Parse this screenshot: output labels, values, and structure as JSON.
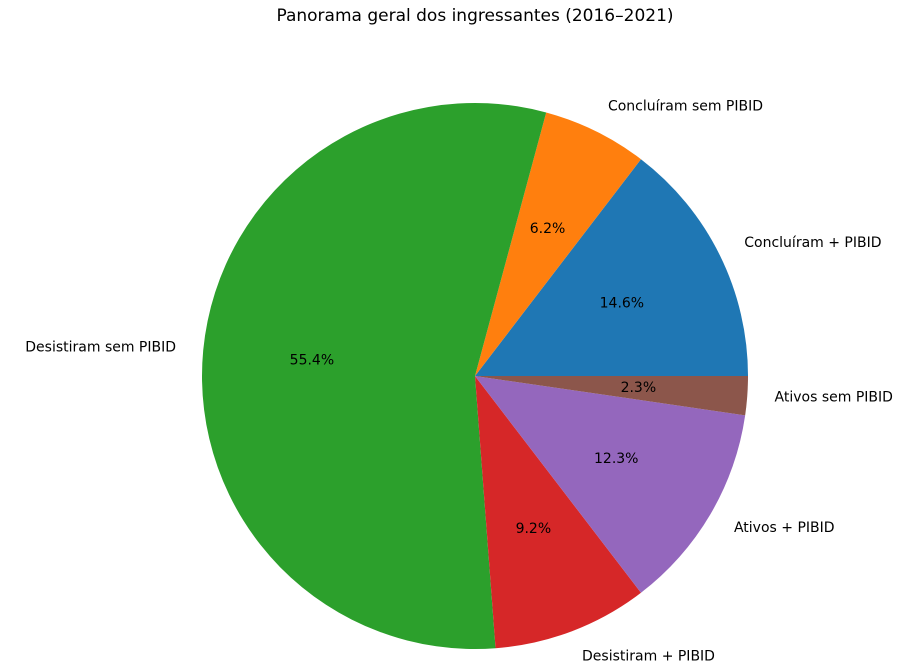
{
  "chart_data": {
    "type": "pie",
    "title": "Panorama geral dos ingressantes (2016–2021)",
    "slices": [
      {
        "label": "Concluíram + PIBID",
        "value": 14.6,
        "pct_label": "14.6%",
        "color": "#1f77b4"
      },
      {
        "label": "Concluíram sem PIBID",
        "value": 6.2,
        "pct_label": "6.2%",
        "color": "#ff7f0e"
      },
      {
        "label": "Desistiram sem PIBID",
        "value": 55.4,
        "pct_label": "55.4%",
        "color": "#2ca02c"
      },
      {
        "label": "Desistiram + PIBID",
        "value": 9.2,
        "pct_label": "9.2%",
        "color": "#d62728"
      },
      {
        "label": "Ativos + PIBID",
        "value": 12.3,
        "pct_label": "12.3%",
        "color": "#9467bd"
      },
      {
        "label": "Ativos sem PIBID",
        "value": 2.3,
        "pct_label": "2.3%",
        "color": "#8c564b"
      }
    ]
  }
}
